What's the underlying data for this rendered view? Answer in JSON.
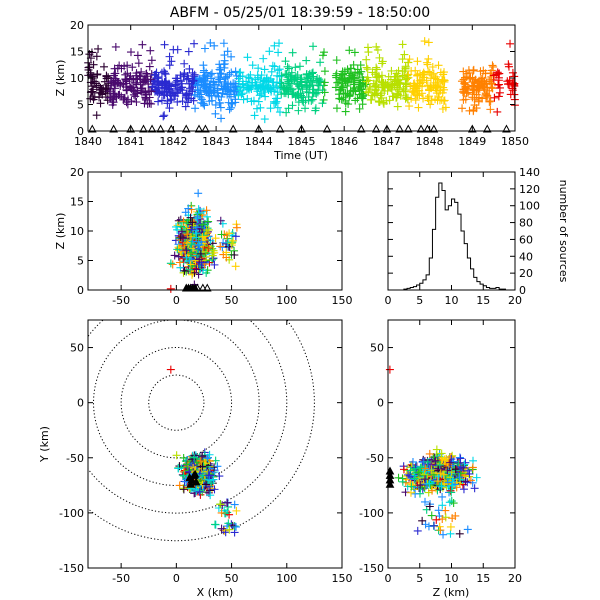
{
  "title": "ABFM - 05/25/01 18:39:59 - 18:50:00",
  "chart_data": [
    {
      "id": "time_height",
      "type": "scatter",
      "xlabel": "Time (UT)",
      "ylabel": "Z (km)",
      "xlim": [
        1840,
        1850
      ],
      "ylim": [
        0,
        20
      ],
      "xticks": [
        "1840",
        "1841",
        "1842",
        "1843",
        "1844",
        "1845",
        "1846",
        "1847",
        "1848",
        "1849",
        "1850"
      ],
      "yticks": [
        "0",
        "5",
        "10",
        "15",
        "20"
      ],
      "color_by": "time",
      "colormap": [
        "#2b0030",
        "#4a0a6e",
        "#2a2ad0",
        "#1a8cff",
        "#00d8e8",
        "#00d080",
        "#20c020",
        "#b8e000",
        "#ffd000",
        "#ff8000",
        "#e80000"
      ],
      "station_markers_x": [
        1840.1,
        1840.6,
        1841.0,
        1841.3,
        1841.5,
        1841.7,
        1841.95,
        1842.3,
        1842.6,
        1842.75,
        1843.4,
        1844.0,
        1844.5,
        1845.0,
        1845.6,
        1846.4,
        1846.75,
        1847.0,
        1847.3,
        1847.5,
        1847.8,
        1847.95,
        1848.1,
        1849.0,
        1849.35,
        1849.8
      ]
    },
    {
      "id": "xz",
      "type": "scatter",
      "xlabel": "",
      "ylabel": "Z (km)",
      "xlim": [
        -80,
        150
      ],
      "ylim": [
        0,
        20
      ],
      "xticks": [
        "-50",
        "0",
        "50",
        "100",
        "150"
      ],
      "yticks": [
        "0",
        "5",
        "10",
        "15",
        "20"
      ]
    },
    {
      "id": "histogram",
      "type": "histogram",
      "xlabel": "",
      "ylabel": "number of sources",
      "xlim": [
        0,
        20
      ],
      "ylim": [
        0,
        140
      ],
      "xticks": [
        "0",
        "5",
        "10",
        "15",
        "20"
      ],
      "yticks": [
        "0",
        "20",
        "40",
        "60",
        "80",
        "100",
        "120",
        "140"
      ],
      "bin_width": 0.5,
      "bin_start": 0,
      "counts": [
        0,
        0,
        0,
        0,
        0,
        1,
        2,
        3,
        4,
        6,
        8,
        12,
        18,
        38,
        72,
        110,
        127,
        118,
        95,
        100,
        108,
        104,
        90,
        70,
        55,
        38,
        25,
        15,
        10,
        7,
        5,
        3,
        2,
        2,
        3,
        1,
        1,
        0,
        0,
        0
      ]
    },
    {
      "id": "plan",
      "type": "scatter",
      "xlabel": "X (km)",
      "ylabel": "Y (km)",
      "xlim": [
        -80,
        150
      ],
      "ylim": [
        -150,
        75
      ],
      "xticks": [
        "-50",
        "0",
        "50",
        "100",
        "150"
      ],
      "yticks": [
        "-150",
        "-100",
        "-50",
        "0",
        "50"
      ],
      "range_rings_km": [
        25,
        50,
        75,
        100,
        125
      ]
    },
    {
      "id": "zy",
      "type": "scatter",
      "xlabel": "Z (km)",
      "ylabel": "",
      "xlim": [
        0,
        20
      ],
      "ylim": [
        -150,
        75
      ],
      "xticks": [
        "0",
        "5",
        "10",
        "15",
        "20"
      ],
      "yticks": [
        "-150",
        "-100",
        "-50",
        "0",
        "50"
      ]
    }
  ]
}
